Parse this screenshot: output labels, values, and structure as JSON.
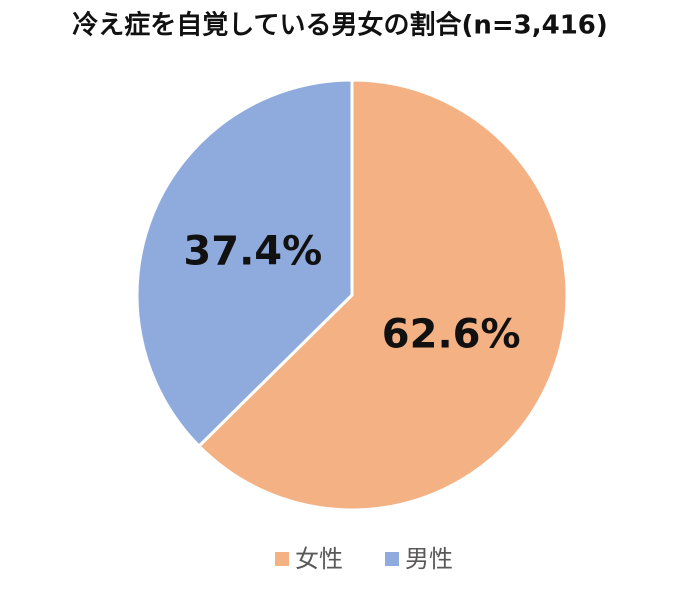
{
  "chart_data": {
    "type": "pie",
    "title": "冷え症を自覚している男女の割合(n=3,416)",
    "categories": [
      "女性",
      "男性"
    ],
    "values": [
      62.6,
      37.4
    ],
    "value_labels": [
      "62.6%",
      "37.4%"
    ],
    "colors": [
      "#f4b183",
      "#8faadc"
    ],
    "legend": "bottom"
  }
}
